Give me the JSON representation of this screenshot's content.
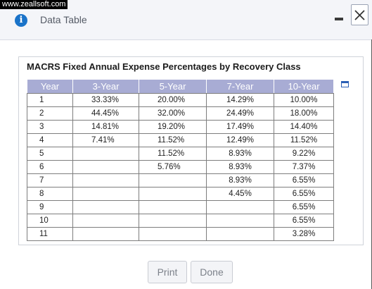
{
  "watermark": "www.zeallsoft.com",
  "dialog": {
    "title": "Data Table",
    "info_icon": "info-icon",
    "minimize_icon": "minimize-icon",
    "close_icon": "close-icon"
  },
  "table": {
    "title": "MACRS Fixed Annual Expense Percentages by Recovery Class",
    "headers": [
      "Year",
      "3-Year",
      "5-Year",
      "7-Year",
      "10-Year"
    ],
    "rows": [
      [
        "1",
        "33.33%",
        "20.00%",
        "14.29%",
        "10.00%"
      ],
      [
        "2",
        "44.45%",
        "32.00%",
        "24.49%",
        "18.00%"
      ],
      [
        "3",
        "14.81%",
        "19.20%",
        "17.49%",
        "14.40%"
      ],
      [
        "4",
        "7.41%",
        "11.52%",
        "12.49%",
        "11.52%"
      ],
      [
        "5",
        "",
        "11.52%",
        "8.93%",
        "9.22%"
      ],
      [
        "6",
        "",
        "5.76%",
        "8.93%",
        "7.37%"
      ],
      [
        "7",
        "",
        "",
        "8.93%",
        "6.55%"
      ],
      [
        "8",
        "",
        "",
        "4.45%",
        "6.55%"
      ],
      [
        "9",
        "",
        "",
        "",
        "6.55%"
      ],
      [
        "10",
        "",
        "",
        "",
        "6.55%"
      ],
      [
        "11",
        "",
        "",
        "",
        "3.28%"
      ]
    ],
    "expand_icon": "expand-icon"
  },
  "buttons": {
    "print": "Print",
    "done": "Done"
  },
  "colors": {
    "header_bg": "#a8acd4",
    "accent_blue": "#1a73c9"
  }
}
